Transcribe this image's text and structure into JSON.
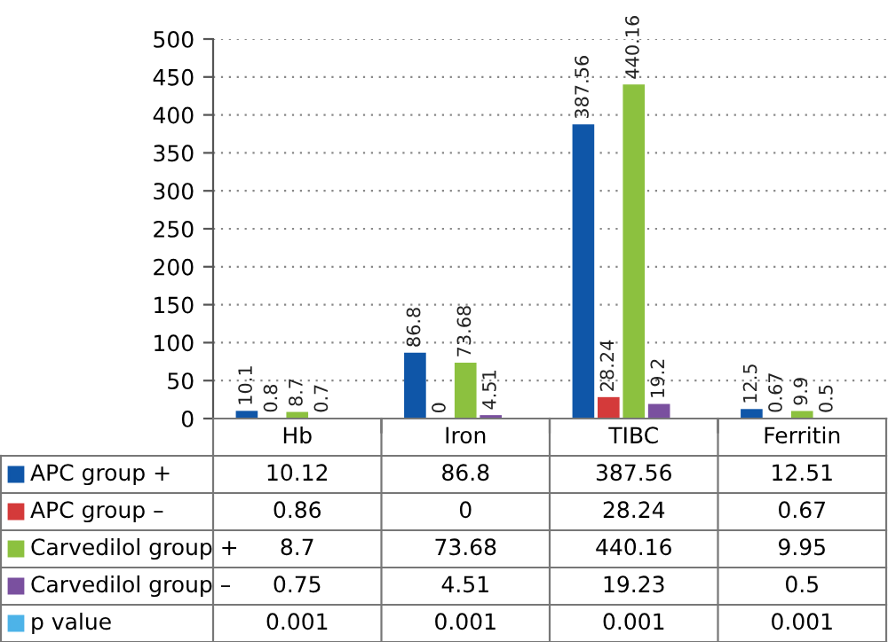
{
  "chart_data": {
    "type": "bar",
    "categories": [
      "Hb",
      "Iron",
      "TIBC",
      "Ferritin"
    ],
    "series": [
      {
        "name": "APC group +",
        "color": "#0f56a8",
        "values": [
          10.12,
          86.8,
          387.56,
          12.51
        ]
      },
      {
        "name": "APC group –",
        "color": "#d43a3a",
        "values": [
          0.86,
          0,
          28.24,
          0.67
        ]
      },
      {
        "name": "Carvedilol group +",
        "color": "#8cc13f",
        "values": [
          8.7,
          73.68,
          440.16,
          9.95
        ]
      },
      {
        "name": "Carvedilol group –",
        "color": "#7a509f",
        "values": [
          0.75,
          4.51,
          19.23,
          0.5
        ]
      },
      {
        "name": "p value",
        "color": "#4db3e8",
        "values": [
          0.001,
          0.001,
          0.001,
          0.001
        ]
      }
    ],
    "annotations": [
      "10.1",
      "0.8",
      "8.7",
      "0.7",
      "86.8",
      "0",
      "73.68",
      "4.51",
      "387.56",
      "28.24",
      "440.16",
      "19.2",
      "12.5",
      "0.67",
      "9.9",
      "0.5"
    ],
    "ylim": [
      0,
      500
    ],
    "yticks": [
      0,
      50,
      100,
      150,
      200,
      250,
      300,
      350,
      400,
      450,
      500
    ],
    "grid": "y",
    "data_labels": true,
    "legend": "bottom"
  }
}
